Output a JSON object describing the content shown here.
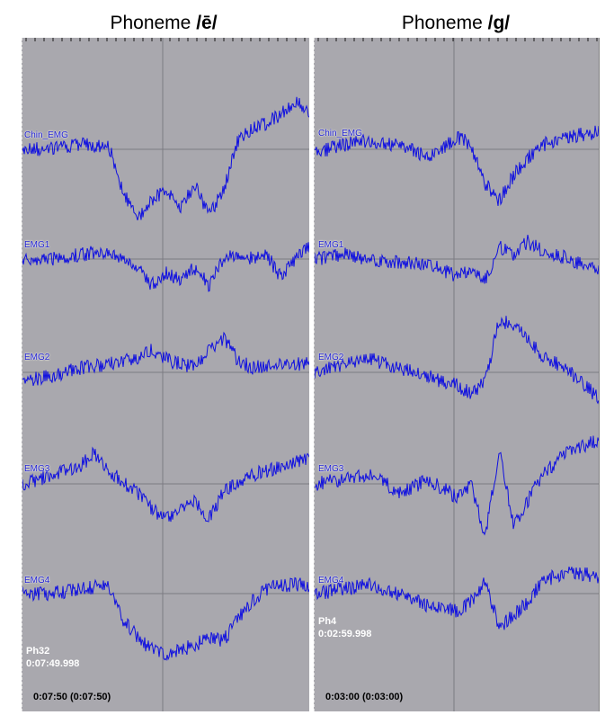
{
  "colors": {
    "background": "#a9a8ae",
    "trace": "#1010e0",
    "grid": "#7c7b82",
    "label": "#2020d0"
  },
  "panels": [
    {
      "title_prefix": "Phoneme ",
      "title_phoneme": "/ē/",
      "channels": [
        "Chin_EMG",
        "EMG1",
        "EMG2",
        "EMG3",
        "EMG4"
      ],
      "marker": "Ph32",
      "marker_time": "0:07:49.998",
      "footer": "0:07:50 (0:07:50)"
    },
    {
      "title_prefix": "Phoneme ",
      "title_phoneme": "/g/",
      "channels": [
        "Chin_EMG",
        "EMG1",
        "EMG2",
        "EMG3",
        "EMG4"
      ],
      "marker": "Ph4",
      "marker_time": "0:02:59.998",
      "footer": "0:03:00 (0:03:00)"
    }
  ],
  "chart_data": [
    {
      "type": "line",
      "title": "Phoneme /ē/",
      "series": [
        {
          "name": "Chin_EMG",
          "x": [
            0,
            0.1,
            0.2,
            0.3,
            0.35,
            0.4,
            0.45,
            0.5,
            0.55,
            0.6,
            0.65,
            0.7,
            0.75,
            0.8,
            0.85,
            0.9,
            0.95,
            1.0
          ],
          "values": [
            0,
            0,
            0.1,
            0.1,
            -1.0,
            -1.6,
            -1.2,
            -0.9,
            -1.4,
            -0.8,
            -1.5,
            -1.0,
            0.2,
            0.5,
            0.6,
            0.8,
            1.1,
            0.9
          ]
        },
        {
          "name": "EMG1",
          "x": [
            0,
            0.1,
            0.2,
            0.3,
            0.4,
            0.45,
            0.5,
            0.55,
            0.6,
            0.65,
            0.7,
            0.75,
            0.8,
            0.85,
            0.9,
            0.95,
            1.0
          ],
          "values": [
            0,
            0,
            0.1,
            0.2,
            -0.2,
            -0.6,
            -0.3,
            -0.5,
            -0.2,
            -0.6,
            0,
            0.1,
            0,
            0.1,
            -0.4,
            0,
            0.3
          ]
        },
        {
          "name": "EMG2",
          "x": [
            0,
            0.1,
            0.2,
            0.3,
            0.4,
            0.45,
            0.5,
            0.55,
            0.6,
            0.65,
            0.7,
            0.75,
            0.8,
            0.9,
            1.0
          ],
          "values": [
            -0.2,
            -0.1,
            0.1,
            0.2,
            0.3,
            0.5,
            0.3,
            0.2,
            0.1,
            0.5,
            0.8,
            0.3,
            0.1,
            0.2,
            0.2
          ]
        },
        {
          "name": "EMG3",
          "x": [
            0,
            0.1,
            0.2,
            0.25,
            0.3,
            0.4,
            0.45,
            0.5,
            0.55,
            0.6,
            0.65,
            0.7,
            0.75,
            0.8,
            0.9,
            1.0
          ],
          "values": [
            0,
            0.2,
            0.4,
            0.7,
            0.3,
            -0.2,
            -0.6,
            -0.8,
            -0.6,
            -0.4,
            -0.8,
            -0.2,
            0,
            0.2,
            0.4,
            0.6
          ]
        },
        {
          "name": "EMG4",
          "x": [
            0,
            0.1,
            0.2,
            0.3,
            0.35,
            0.4,
            0.45,
            0.5,
            0.55,
            0.6,
            0.65,
            0.7,
            0.75,
            0.8,
            0.85,
            0.9,
            1.0
          ],
          "values": [
            0,
            0,
            0.1,
            0.2,
            -0.6,
            -1.0,
            -1.3,
            -1.4,
            -1.3,
            -1.2,
            -1.0,
            -1.1,
            -0.6,
            -0.2,
            0.1,
            0.2,
            0.2
          ]
        }
      ]
    },
    {
      "type": "line",
      "title": "Phoneme /g/",
      "series": [
        {
          "name": "Chin_EMG",
          "x": [
            0,
            0.1,
            0.2,
            0.3,
            0.4,
            0.45,
            0.5,
            0.55,
            0.6,
            0.65,
            0.7,
            0.75,
            0.8,
            0.9,
            1.0
          ],
          "values": [
            -0.1,
            0.1,
            0.2,
            0.1,
            -0.2,
            0,
            0.3,
            0.1,
            -0.8,
            -1.2,
            -0.6,
            -0.2,
            0.1,
            0.3,
            0.4
          ]
        },
        {
          "name": "EMG1",
          "x": [
            0,
            0.1,
            0.2,
            0.3,
            0.4,
            0.5,
            0.55,
            0.6,
            0.65,
            0.7,
            0.75,
            0.8,
            0.9,
            1.0
          ],
          "values": [
            0,
            0.1,
            0,
            -0.1,
            -0.1,
            -0.4,
            -0.2,
            -0.5,
            0.3,
            0.1,
            0.4,
            0.2,
            0,
            -0.3
          ]
        },
        {
          "name": "EMG2",
          "x": [
            0,
            0.1,
            0.2,
            0.3,
            0.4,
            0.5,
            0.55,
            0.6,
            0.65,
            0.7,
            0.75,
            0.8,
            0.9,
            1.0
          ],
          "values": [
            0,
            0.2,
            0.3,
            0.1,
            -0.1,
            -0.3,
            -0.5,
            -0.2,
            1.2,
            1.1,
            0.8,
            0.4,
            0,
            -0.6
          ]
        },
        {
          "name": "EMG3",
          "x": [
            0,
            0.1,
            0.2,
            0.3,
            0.4,
            0.5,
            0.55,
            0.6,
            0.65,
            0.7,
            0.75,
            0.8,
            0.9,
            1.0
          ],
          "values": [
            0,
            0.1,
            0.2,
            -0.2,
            0.1,
            -0.3,
            0,
            -1.2,
            0.8,
            -1.0,
            -0.4,
            0.2,
            0.8,
            1.0
          ]
        },
        {
          "name": "EMG4",
          "x": [
            0,
            0.1,
            0.2,
            0.3,
            0.4,
            0.5,
            0.55,
            0.6,
            0.65,
            0.7,
            0.75,
            0.8,
            0.9,
            1.0
          ],
          "values": [
            0,
            0.1,
            0.2,
            0,
            -0.3,
            -0.4,
            -0.2,
            0.3,
            -0.8,
            -0.5,
            -0.2,
            0.3,
            0.5,
            0.4
          ]
        }
      ]
    }
  ]
}
